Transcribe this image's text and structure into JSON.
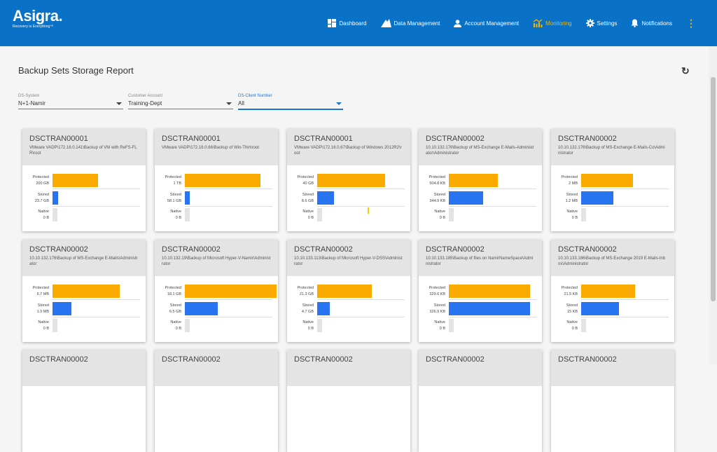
{
  "header": {
    "brand": "Asigra.",
    "tagline": "Recovery is Everything™",
    "nav": [
      {
        "label": "Dashboard",
        "icon": "dashboard-icon"
      },
      {
        "label": "Data Management",
        "icon": "data-management-icon"
      },
      {
        "label": "Account Management",
        "icon": "person-icon"
      },
      {
        "label": "Monitoring",
        "icon": "monitoring-icon",
        "active": true
      },
      {
        "label": "Settings",
        "icon": "gear-icon"
      },
      {
        "label": "Notifications",
        "icon": "bell-icon"
      }
    ],
    "more_icon": "more-vertical-icon"
  },
  "page": {
    "title": "Backup Sets Storage Report",
    "refresh_icon": "refresh-icon"
  },
  "filters": [
    {
      "label": "DS-System",
      "value": "N+1-Namir"
    },
    {
      "label": "Customer Account",
      "value": "Training-Dept"
    },
    {
      "label": "DS-Client Number",
      "value": "All",
      "active": true
    }
  ],
  "row_labels": {
    "protected": "Protected",
    "stored": "Stored",
    "native": "Native"
  },
  "colors": {
    "header_bg": "#0a72c6",
    "active_nav": "#f7b500",
    "protected": "#fbab00",
    "stored": "#2874f0",
    "native": "#e3e3e3"
  },
  "cards": [
    {
      "name": "DSCTRAN00001",
      "path": "VMware VADP\\172.16.0.141\\Backup of VM with ReFS-FLR\\root",
      "protected": "200 GB",
      "stored": "23.7 GB",
      "native": "0 B",
      "protected_pct": 48,
      "stored_pct": 6,
      "native_pct": 5
    },
    {
      "name": "DSCTRAN00001",
      "path": "VMware VADP\\172.16.0.66\\Backup of Win-Thin\\root",
      "protected": "1 TB",
      "stored": "58.1 GB",
      "native": "0 B",
      "protected_pct": 80,
      "stored_pct": 5,
      "native_pct": 5
    },
    {
      "name": "DSCTRAN00001",
      "path": "VMware VADP\\172.16.0.67\\Backup of Windows 2012R2\\root",
      "protected": "40 GB",
      "stored": "8.6 GB",
      "native": "0 B",
      "protected_pct": 72,
      "stored_pct": 18,
      "native_pct": 5
    },
    {
      "name": "DSCTRAN00002",
      "path": "10.10.132.176\\Backup of MS-Exchange E-Mails-Administrator\\Administrator",
      "protected": "504.8 KB",
      "stored": "344.9 KB",
      "native": "0 B",
      "protected_pct": 52,
      "stored_pct": 36,
      "native_pct": 5
    },
    {
      "name": "DSCTRAN00002",
      "path": "10.10.132.176\\Backup of MS-Exchange E-Mails-Co\\Administrator",
      "protected": "2 MB",
      "stored": "1.2 MB",
      "native": "0 B",
      "protected_pct": 55,
      "stored_pct": 34,
      "native_pct": 5
    },
    {
      "name": "DSCTRAN00002",
      "path": "10.10.132.176\\Backup of MS-Exchange E-Mails\\Administrator",
      "protected": "6.7 MB",
      "stored": "1.9 MB",
      "native": "0 B",
      "protected_pct": 71,
      "stored_pct": 20,
      "native_pct": 5
    },
    {
      "name": "DSCTRAN00002",
      "path": "10.10.132.19\\Backup of Microsoft Hyper-V-Namir\\Administrator",
      "protected": "18.1 GB",
      "stored": "6.5 GB",
      "native": "0 B",
      "protected_pct": 97,
      "stored_pct": 35,
      "native_pct": 5
    },
    {
      "name": "DSCTRAN00002",
      "path": "10.10.133.113\\Backup of Microsoft Hyper-V-DSS\\Administrator",
      "protected": "21.3 GB",
      "stored": "4.7 GB",
      "native": "0 B",
      "protected_pct": 58,
      "stored_pct": 13,
      "native_pct": 5
    },
    {
      "name": "DSCTRAN00002",
      "path": "10.10.133.185\\Backup of files on NamirNameSpace\\Administrator",
      "protected": "329.6 KB",
      "stored": "326.9 KB",
      "native": "0 B",
      "protected_pct": 86,
      "stored_pct": 86,
      "native_pct": 5
    },
    {
      "name": "DSCTRAN00002",
      "path": "10.10.133.186\\Backup of MS-Exchange 2019 E-Mails-Inbox\\Administrator",
      "protected": "21.5 KB",
      "stored": "15 KB",
      "native": "0 B",
      "protected_pct": 57,
      "stored_pct": 40,
      "native_pct": 5
    },
    {
      "name": "DSCTRAN00002",
      "path": "",
      "protected": "",
      "stored": "",
      "native": ""
    },
    {
      "name": "DSCTRAN00002",
      "path": "",
      "protected": "",
      "stored": "",
      "native": ""
    },
    {
      "name": "DSCTRAN00002",
      "path": "",
      "protected": "",
      "stored": "",
      "native": ""
    },
    {
      "name": "DSCTRAN00002",
      "path": "",
      "protected": "",
      "stored": "",
      "native": ""
    },
    {
      "name": "DSCTRAN00002",
      "path": "",
      "protected": "",
      "stored": "",
      "native": ""
    }
  ]
}
